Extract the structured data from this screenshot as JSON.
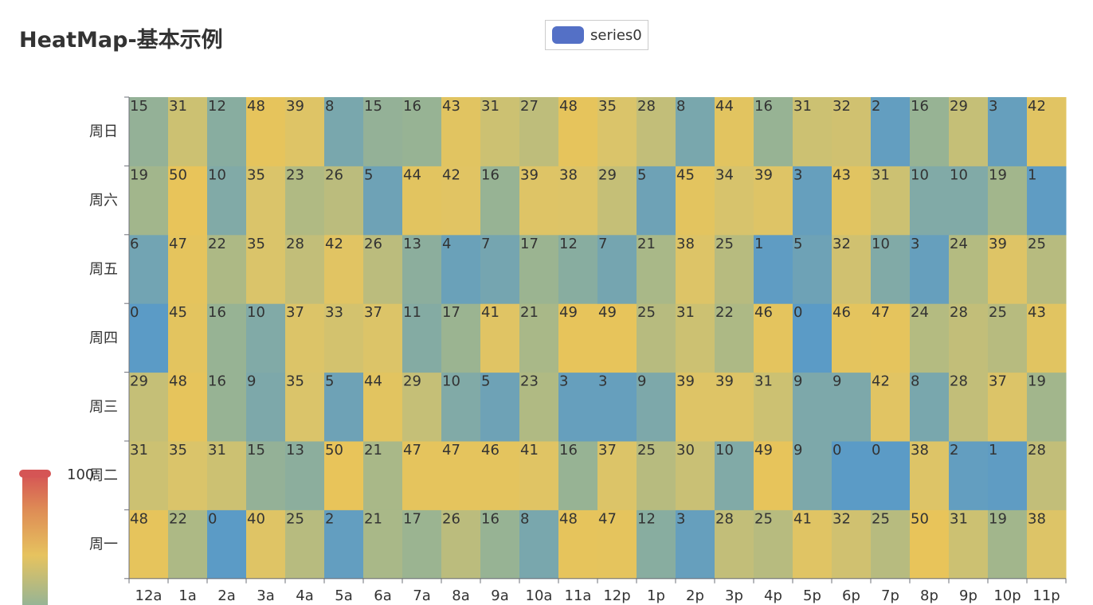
{
  "title": "HeatMap-基本示例",
  "legend": {
    "label": "series0",
    "color": "#5470c6"
  },
  "visual_map": {
    "max_label": "100",
    "max": 100,
    "min": 0,
    "colors": [
      "#5b9bc6",
      "#9db58f",
      "#e6c35f",
      "#d06a4f",
      "#d55555"
    ]
  },
  "chart_data": {
    "type": "heatmap",
    "title": "HeatMap-基本示例",
    "x": [
      "12a",
      "1a",
      "2a",
      "3a",
      "4a",
      "5a",
      "6a",
      "7a",
      "8a",
      "9a",
      "10a",
      "11a",
      "12p",
      "1p",
      "2p",
      "3p",
      "4p",
      "5p",
      "6p",
      "7p",
      "8p",
      "9p",
      "10p",
      "11p"
    ],
    "y": [
      "周一",
      "周二",
      "周三",
      "周四",
      "周五",
      "周六",
      "周日"
    ],
    "values": [
      [
        48,
        22,
        0,
        40,
        25,
        2,
        21,
        17,
        26,
        16,
        8,
        48,
        47,
        12,
        3,
        28,
        25,
        41,
        32,
        25,
        50,
        31,
        19,
        38
      ],
      [
        31,
        35,
        31,
        15,
        13,
        50,
        21,
        47,
        47,
        46,
        41,
        16,
        37,
        25,
        30,
        10,
        49,
        9,
        0,
        0,
        38,
        2,
        1,
        28
      ],
      [
        29,
        48,
        16,
        9,
        35,
        5,
        44,
        29,
        10,
        5,
        23,
        3,
        3,
        9,
        39,
        39,
        31,
        9,
        9,
        42,
        8,
        28,
        37,
        19
      ],
      [
        0,
        45,
        16,
        10,
        37,
        33,
        37,
        11,
        17,
        41,
        21,
        49,
        49,
        25,
        31,
        22,
        46,
        0,
        46,
        47,
        24,
        28,
        25,
        43
      ],
      [
        6,
        47,
        22,
        35,
        28,
        42,
        26,
        13,
        4,
        7,
        17,
        12,
        7,
        21,
        38,
        25,
        1,
        5,
        32,
        10,
        3,
        24,
        39,
        25
      ],
      [
        19,
        50,
        10,
        35,
        23,
        26,
        5,
        44,
        42,
        16,
        39,
        38,
        29,
        5,
        45,
        34,
        39,
        3,
        43,
        31,
        10,
        10,
        19,
        1
      ],
      [
        15,
        31,
        12,
        48,
        39,
        8,
        15,
        16,
        43,
        31,
        27,
        48,
        35,
        28,
        8,
        44,
        16,
        31,
        32,
        2,
        16,
        29,
        3,
        42
      ]
    ],
    "color_range": [
      0,
      50
    ]
  }
}
